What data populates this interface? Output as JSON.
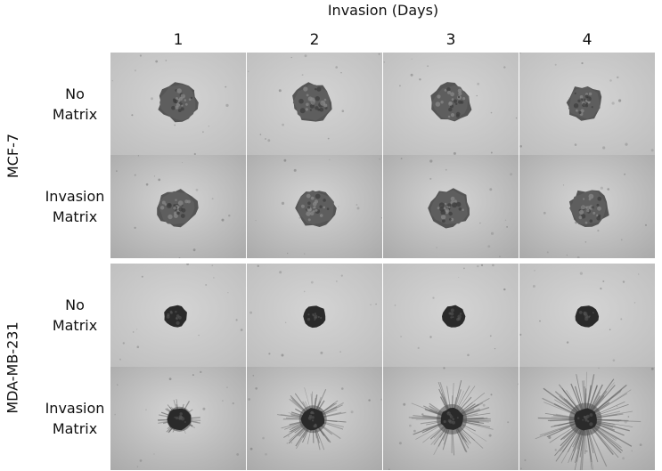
{
  "figure": {
    "column_axis_title": "Invasion (Days)",
    "days": [
      "1",
      "2",
      "3",
      "4"
    ],
    "cell_lines": [
      {
        "name": "MCF-7",
        "conditions": [
          {
            "line1": "No",
            "line2": "Matrix"
          },
          {
            "line1": "Invasion",
            "line2": "Matrix"
          }
        ]
      },
      {
        "name": "MDA-MB-231",
        "conditions": [
          {
            "line1": "No",
            "line2": "Matrix"
          },
          {
            "line1": "Invasion",
            "line2": "Matrix"
          }
        ]
      }
    ]
  },
  "micrographs": {
    "description_style": "grayscale brightfield spheroid micrographs",
    "colors": {
      "background": "#c8c8c8",
      "spheroid_dark": "#2a2a2a",
      "mcf7_body": "#5e5e5e",
      "invasion_strands": "#6a6a6a"
    }
  }
}
